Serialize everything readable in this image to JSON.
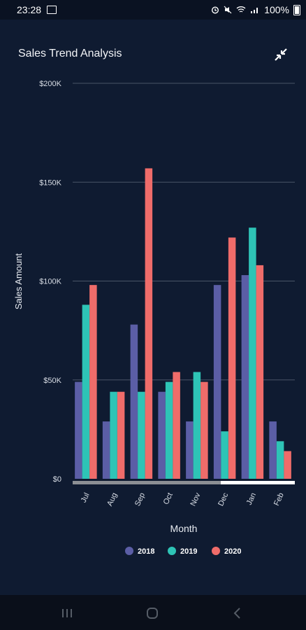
{
  "status_bar": {
    "time": "23:28",
    "battery": "100%",
    "icons": [
      "image-icon",
      "alarm-icon",
      "mute-icon",
      "wifi-icon",
      "signal-icon",
      "battery-icon"
    ]
  },
  "header": {
    "title": "Sales Trend Analysis",
    "action_icon": "collapse-icon"
  },
  "chart_data": {
    "type": "bar",
    "title": "Sales Trend Analysis",
    "xlabel": "Month",
    "ylabel": "Sales Amount",
    "ylim": [
      0,
      200000
    ],
    "yticks": [
      0,
      50000,
      100000,
      150000,
      200000
    ],
    "ytick_labels": [
      "$0",
      "$50K",
      "$100K",
      "$150K",
      "$200K"
    ],
    "categories": [
      "Jul",
      "Aug",
      "Sep",
      "Oct",
      "Nov",
      "Dec",
      "Jan",
      "Feb"
    ],
    "series": [
      {
        "name": "2018",
        "color": "#5b5ea6",
        "values": [
          49000,
          29000,
          78000,
          44000,
          29000,
          98000,
          103000,
          29000
        ]
      },
      {
        "name": "2019",
        "color": "#2ec4b6",
        "values": [
          88000,
          44000,
          44000,
          49000,
          54000,
          24000,
          127000,
          19000
        ]
      },
      {
        "name": "2020",
        "color": "#ef6c6a",
        "values": [
          98000,
          44000,
          157000,
          54000,
          49000,
          122000,
          108000,
          14000
        ]
      }
    ],
    "grid": true,
    "legend": "bottom"
  },
  "nav_bar": {
    "icons": [
      "recent-apps-icon",
      "home-icon",
      "back-icon"
    ]
  }
}
